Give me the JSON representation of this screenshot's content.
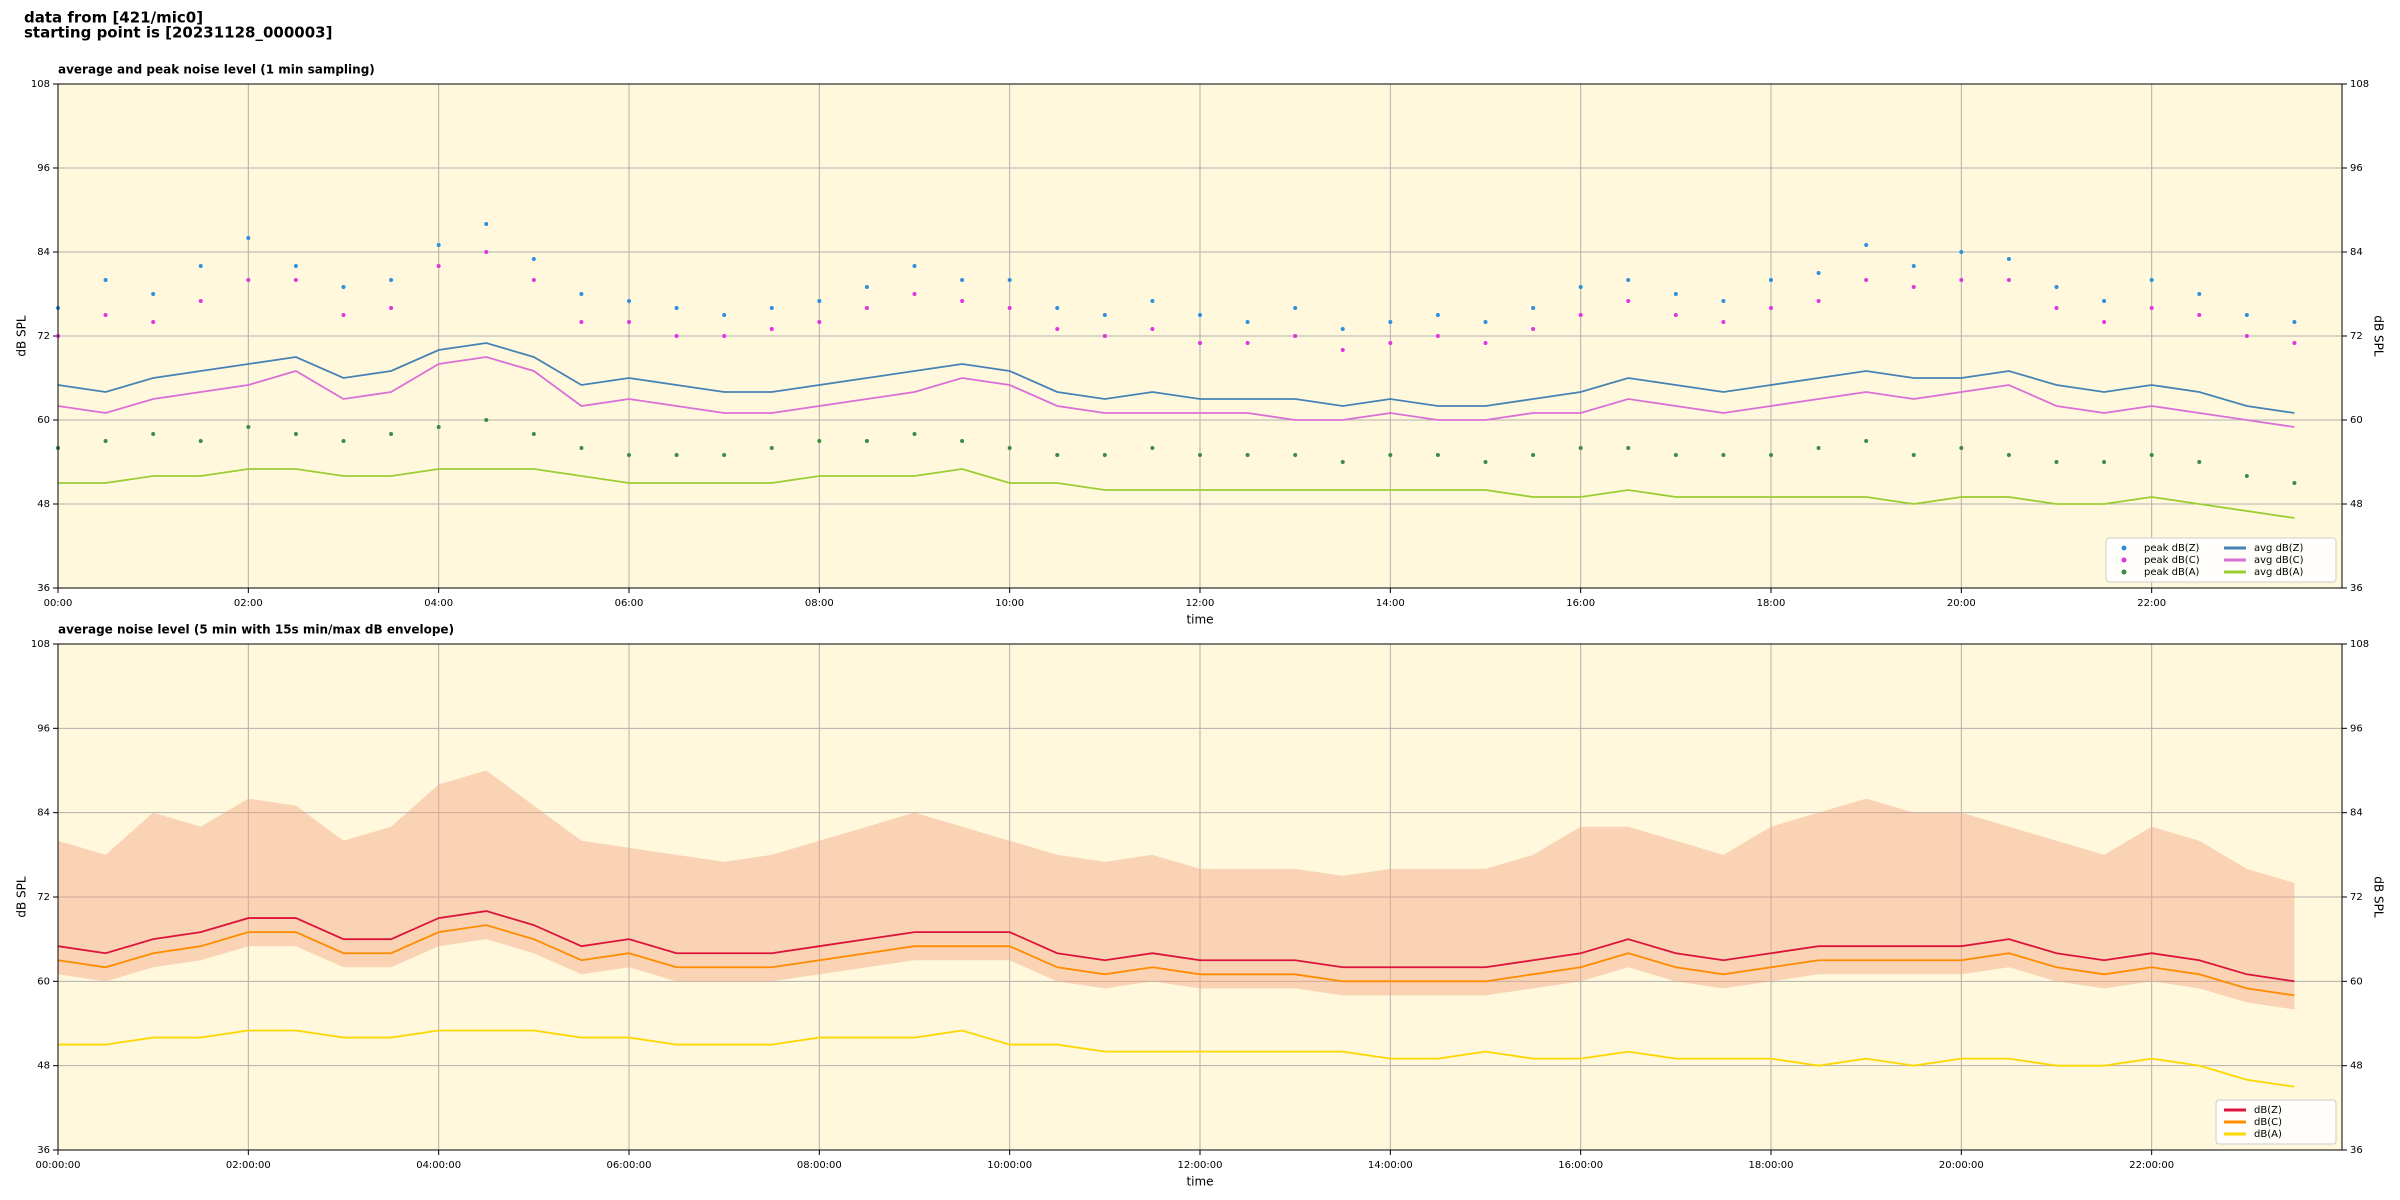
{
  "header": {
    "lines": [
      "data from [421/mic0]",
      "starting point is [20231128_000003]"
    ]
  },
  "chart_data": [
    {
      "type": "line",
      "title": "average and peak noise level (1 min sampling)",
      "xlabel": "time",
      "ylabel": "dB SPL",
      "x": [
        0,
        30,
        60,
        90,
        120,
        150,
        180,
        210,
        240,
        270,
        300,
        330,
        360,
        390,
        420,
        450,
        480,
        510,
        540,
        570,
        600,
        630,
        660,
        690,
        720,
        750,
        780,
        810,
        840,
        870,
        900,
        930,
        960,
        990,
        1020,
        1050,
        1080,
        1110,
        1140,
        1170,
        1200,
        1230,
        1260,
        1290,
        1320,
        1350,
        1380,
        1410
      ],
      "xlim": [
        0,
        1440
      ],
      "xticks": [
        {
          "value": 0,
          "label": "00:00"
        },
        {
          "value": 120,
          "label": "02:00"
        },
        {
          "value": 240,
          "label": "04:00"
        },
        {
          "value": 360,
          "label": "06:00"
        },
        {
          "value": 480,
          "label": "08:00"
        },
        {
          "value": 600,
          "label": "10:00"
        },
        {
          "value": 720,
          "label": "12:00"
        },
        {
          "value": 840,
          "label": "14:00"
        },
        {
          "value": 960,
          "label": "16:00"
        },
        {
          "value": 1080,
          "label": "18:00"
        },
        {
          "value": 1200,
          "label": "20:00"
        },
        {
          "value": 1320,
          "label": "22:00"
        }
      ],
      "ylim": [
        36,
        108
      ],
      "yticks": [
        36,
        48,
        60,
        72,
        84,
        96,
        108
      ],
      "grid": true,
      "legend": "lower right",
      "legend_columns": 2,
      "series": [
        {
          "name": "peak dB(Z)",
          "style": "scatter",
          "color": "#2c8fe0",
          "values": [
            76,
            80,
            78,
            82,
            86,
            82,
            79,
            80,
            85,
            88,
            83,
            78,
            77,
            76,
            75,
            76,
            77,
            79,
            82,
            80,
            80,
            76,
            75,
            77,
            75,
            74,
            76,
            73,
            74,
            75,
            74,
            76,
            79,
            80,
            78,
            77,
            80,
            81,
            85,
            82,
            84,
            83,
            79,
            77,
            80,
            78,
            75,
            74
          ]
        },
        {
          "name": "peak dB(C)",
          "style": "scatter",
          "color": "#e034e0",
          "values": [
            72,
            75,
            74,
            77,
            80,
            80,
            75,
            76,
            82,
            84,
            80,
            74,
            74,
            72,
            72,
            73,
            74,
            76,
            78,
            77,
            76,
            73,
            72,
            73,
            71,
            71,
            72,
            70,
            71,
            72,
            71,
            73,
            75,
            77,
            75,
            74,
            76,
            77,
            80,
            79,
            80,
            80,
            76,
            74,
            76,
            75,
            72,
            71
          ]
        },
        {
          "name": "peak dB(A)",
          "style": "scatter",
          "color": "#3c8c46",
          "values": [
            56,
            57,
            58,
            57,
            59,
            58,
            57,
            58,
            59,
            60,
            58,
            56,
            55,
            55,
            55,
            56,
            57,
            57,
            58,
            57,
            56,
            55,
            55,
            56,
            55,
            55,
            55,
            54,
            55,
            55,
            54,
            55,
            56,
            56,
            55,
            55,
            55,
            56,
            57,
            55,
            56,
            55,
            54,
            54,
            55,
            54,
            52,
            51
          ]
        },
        {
          "name": "avg dB(Z)",
          "style": "line",
          "color": "#4682b4",
          "values": [
            65,
            64,
            66,
            67,
            68,
            69,
            66,
            67,
            70,
            71,
            69,
            65,
            66,
            65,
            64,
            64,
            65,
            66,
            67,
            68,
            67,
            64,
            63,
            64,
            63,
            63,
            63,
            62,
            63,
            62,
            62,
            63,
            64,
            66,
            65,
            64,
            65,
            66,
            67,
            66,
            66,
            67,
            65,
            64,
            65,
            64,
            62,
            61
          ]
        },
        {
          "name": "avg dB(C)",
          "style": "line",
          "color": "#da70d6",
          "values": [
            62,
            61,
            63,
            64,
            65,
            67,
            63,
            64,
            68,
            69,
            67,
            62,
            63,
            62,
            61,
            61,
            62,
            63,
            64,
            66,
            65,
            62,
            61,
            61,
            61,
            61,
            60,
            60,
            61,
            60,
            60,
            61,
            61,
            63,
            62,
            61,
            62,
            63,
            64,
            63,
            64,
            65,
            62,
            61,
            62,
            61,
            60,
            59
          ]
        },
        {
          "name": "avg dB(A)",
          "style": "line",
          "color": "#9acd32",
          "values": [
            51,
            51,
            52,
            52,
            53,
            53,
            52,
            52,
            53,
            53,
            53,
            52,
            51,
            51,
            51,
            51,
            52,
            52,
            52,
            53,
            51,
            51,
            50,
            50,
            50,
            50,
            50,
            50,
            50,
            50,
            50,
            49,
            49,
            50,
            49,
            49,
            49,
            49,
            49,
            48,
            49,
            49,
            48,
            48,
            49,
            48,
            47,
            46
          ]
        }
      ]
    },
    {
      "type": "line",
      "title": "average noise level (5 min with 15s min/max dB envelope)",
      "xlabel": "time",
      "ylabel": "dB SPL",
      "x": [
        0,
        30,
        60,
        90,
        120,
        150,
        180,
        210,
        240,
        270,
        300,
        330,
        360,
        390,
        420,
        450,
        480,
        510,
        540,
        570,
        600,
        630,
        660,
        690,
        720,
        750,
        780,
        810,
        840,
        870,
        900,
        930,
        960,
        990,
        1020,
        1050,
        1080,
        1110,
        1140,
        1170,
        1200,
        1230,
        1260,
        1290,
        1320,
        1350,
        1380,
        1410
      ],
      "xlim": [
        0,
        1440
      ],
      "xticks": [
        {
          "value": 0,
          "label": "00:00:00"
        },
        {
          "value": 120,
          "label": "02:00:00"
        },
        {
          "value": 240,
          "label": "04:00:00"
        },
        {
          "value": 360,
          "label": "06:00:00"
        },
        {
          "value": 480,
          "label": "08:00:00"
        },
        {
          "value": 600,
          "label": "10:00:00"
        },
        {
          "value": 720,
          "label": "12:00:00"
        },
        {
          "value": 840,
          "label": "14:00:00"
        },
        {
          "value": 960,
          "label": "16:00:00"
        },
        {
          "value": 1080,
          "label": "18:00:00"
        },
        {
          "value": 1200,
          "label": "20:00:00"
        },
        {
          "value": 1320,
          "label": "22:00:00"
        }
      ],
      "ylim": [
        36,
        108
      ],
      "yticks": [
        36,
        48,
        60,
        72,
        84,
        96,
        108
      ],
      "grid": true,
      "legend": "lower right",
      "legend_columns": 1,
      "envelope": {
        "color": "#f4a582",
        "low": [
          61,
          60,
          62,
          63,
          65,
          65,
          62,
          62,
          65,
          66,
          64,
          61,
          62,
          60,
          60,
          60,
          61,
          62,
          63,
          63,
          63,
          60,
          59,
          60,
          59,
          59,
          59,
          58,
          58,
          58,
          58,
          59,
          60,
          62,
          60,
          59,
          60,
          61,
          61,
          61,
          61,
          62,
          60,
          59,
          60,
          59,
          57,
          56
        ],
        "high": [
          80,
          78,
          84,
          82,
          86,
          85,
          80,
          82,
          88,
          90,
          85,
          80,
          79,
          78,
          77,
          78,
          80,
          82,
          84,
          82,
          80,
          78,
          77,
          78,
          76,
          76,
          76,
          75,
          76,
          76,
          76,
          78,
          82,
          82,
          80,
          78,
          82,
          84,
          86,
          84,
          84,
          82,
          80,
          78,
          82,
          80,
          76,
          74
        ]
      },
      "series": [
        {
          "name": "dB(Z)",
          "style": "line",
          "color": "#dc143c",
          "values": [
            65,
            64,
            66,
            67,
            69,
            69,
            66,
            66,
            69,
            70,
            68,
            65,
            66,
            64,
            64,
            64,
            65,
            66,
            67,
            67,
            67,
            64,
            63,
            64,
            63,
            63,
            63,
            62,
            62,
            62,
            62,
            63,
            64,
            66,
            64,
            63,
            64,
            65,
            65,
            65,
            65,
            66,
            64,
            63,
            64,
            63,
            61,
            60
          ]
        },
        {
          "name": "dB(C)",
          "style": "line",
          "color": "#ff8c00",
          "values": [
            63,
            62,
            64,
            65,
            67,
            67,
            64,
            64,
            67,
            68,
            66,
            63,
            64,
            62,
            62,
            62,
            63,
            64,
            65,
            65,
            65,
            62,
            61,
            62,
            61,
            61,
            61,
            60,
            60,
            60,
            60,
            61,
            62,
            64,
            62,
            61,
            62,
            63,
            63,
            63,
            63,
            64,
            62,
            61,
            62,
            61,
            59,
            58
          ]
        },
        {
          "name": "dB(A)",
          "style": "line",
          "color": "#ffd700",
          "values": [
            51,
            51,
            52,
            52,
            53,
            53,
            52,
            52,
            53,
            53,
            53,
            52,
            52,
            51,
            51,
            51,
            52,
            52,
            52,
            53,
            51,
            51,
            50,
            50,
            50,
            50,
            50,
            50,
            49,
            49,
            50,
            49,
            49,
            50,
            49,
            49,
            49,
            48,
            49,
            48,
            49,
            49,
            48,
            48,
            49,
            48,
            46,
            45
          ]
        }
      ]
    }
  ]
}
